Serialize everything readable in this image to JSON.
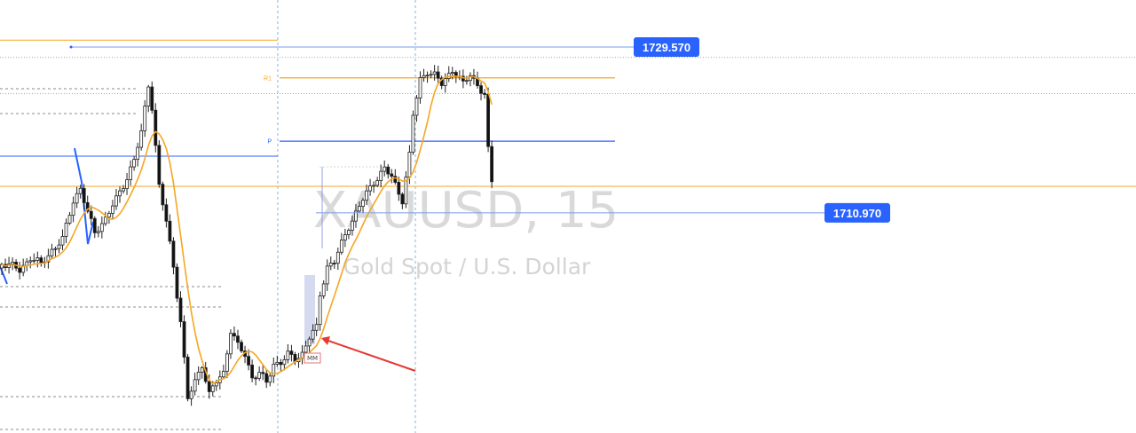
{
  "chart_data": {
    "type": "candlestick",
    "symbol": "XAUUSD, 15",
    "description": "Gold Spot / U.S. Dollar",
    "price_range_visible": [
      1711.5,
      1733.8
    ],
    "price_tags": [
      {
        "price": 1729.57,
        "label": "1729.570",
        "color": "#2962ff"
      },
      {
        "price": 1710.97,
        "label": "1710.970",
        "color": "#2962ff"
      }
    ],
    "pivot_levels": [
      {
        "label": "R1",
        "price": 1726.16,
        "color": "#f5a623"
      },
      {
        "label": "P",
        "price": 1719.06,
        "color": "#2962ff"
      }
    ],
    "horizontal_levels": [
      {
        "price": 1730.39,
        "color": "#f5a623",
        "style": "solid",
        "span": "left"
      },
      {
        "price": 1717.38,
        "color": "#2962ff",
        "style": "solid",
        "span": "left"
      },
      {
        "price": 1714.0,
        "color": "#f5a623",
        "style": "solid",
        "span": "full"
      },
      {
        "price": 1728.45,
        "color": "#888888",
        "style": "dotted",
        "span": "full"
      },
      {
        "price": 1724.38,
        "color": "#888888",
        "style": "dotted",
        "span": "full"
      }
    ],
    "moving_average": {
      "color": "#f5a623"
    },
    "annotations": [
      {
        "type": "arrow",
        "color": "#e53935"
      },
      {
        "type": "label",
        "text": "MM"
      }
    ],
    "candles": []
  }
}
